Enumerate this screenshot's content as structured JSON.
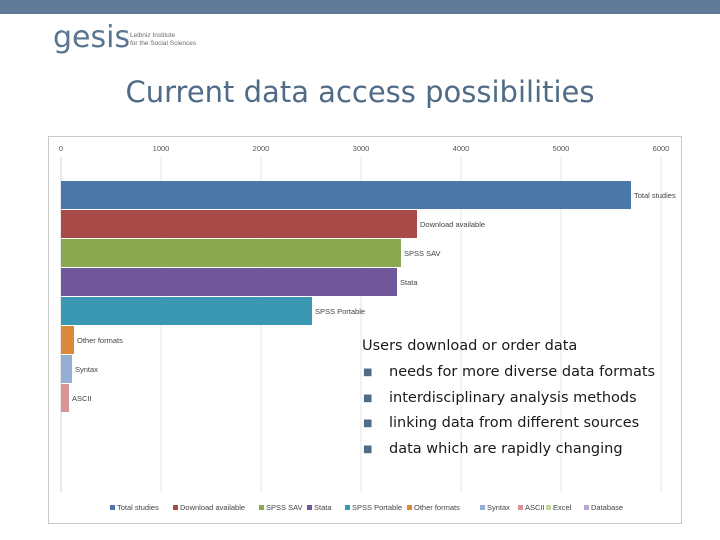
{
  "header": {
    "logo_text": "gesis",
    "logo_subtitle_line1": "Leibniz Institute",
    "logo_subtitle_line2": "for the Social Sciences"
  },
  "slide": {
    "title": "Current data access possibilities"
  },
  "chart_data": {
    "type": "bar",
    "orientation": "horizontal",
    "categories": [
      "Total studies",
      "Download available",
      "SPSS SAV",
      "Stata",
      "SPSS Portable",
      "Other formats",
      "Syntax",
      "ASCII",
      "Excel",
      "Database"
    ],
    "values": [
      5700,
      3560,
      3400,
      3360,
      2510,
      130,
      110,
      80,
      0,
      0
    ],
    "colors": [
      "#4a76a8",
      "#a84a48",
      "#8aa84f",
      "#70579b",
      "#3b98b2",
      "#db8a3c",
      "#95aed3",
      "#d69593",
      "#c3d6a1",
      "#b8a9cc"
    ],
    "x_ticks": [
      "0",
      "1000",
      "2000",
      "3000",
      "4000",
      "5000",
      "6000"
    ],
    "xlim": [
      0,
      6000
    ],
    "grid": true,
    "legend_position": "bottom",
    "title": "",
    "xlabel": "",
    "ylabel": ""
  },
  "overlay_text": {
    "heading": "Users download or order data",
    "bullets": [
      "needs for more diverse data formats",
      "interdisciplinary analysis methods",
      "linking data from different sources",
      "data which are rapidly changing"
    ]
  }
}
